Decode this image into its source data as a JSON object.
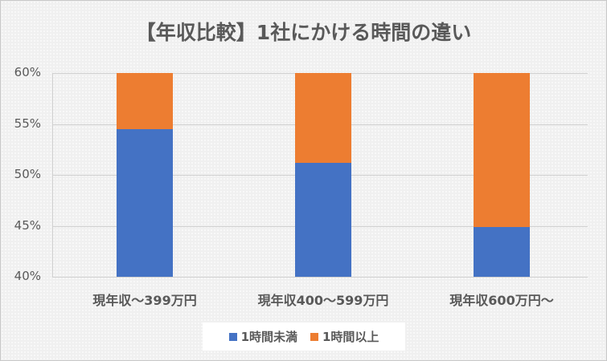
{
  "chart_data": {
    "type": "bar",
    "stacked": true,
    "title": "【年収比較】1社にかける時間の違い",
    "categories": [
      "現年収～399万円",
      "現年収400～599万円",
      "現年収600万円～"
    ],
    "series": [
      {
        "name": "1時間未満",
        "color": "#4472C4",
        "values": [
          0.545,
          0.512,
          0.449
        ]
      },
      {
        "name": "1時間以上",
        "color": "#ED7D31",
        "values": [
          0.455,
          0.488,
          0.551
        ]
      }
    ],
    "xlabel": "",
    "ylabel": "",
    "ylim": [
      0.4,
      0.6
    ],
    "yticks": [
      "60%",
      "55%",
      "50%",
      "45%",
      "40%"
    ],
    "grid": true,
    "legend_position": "bottom"
  }
}
